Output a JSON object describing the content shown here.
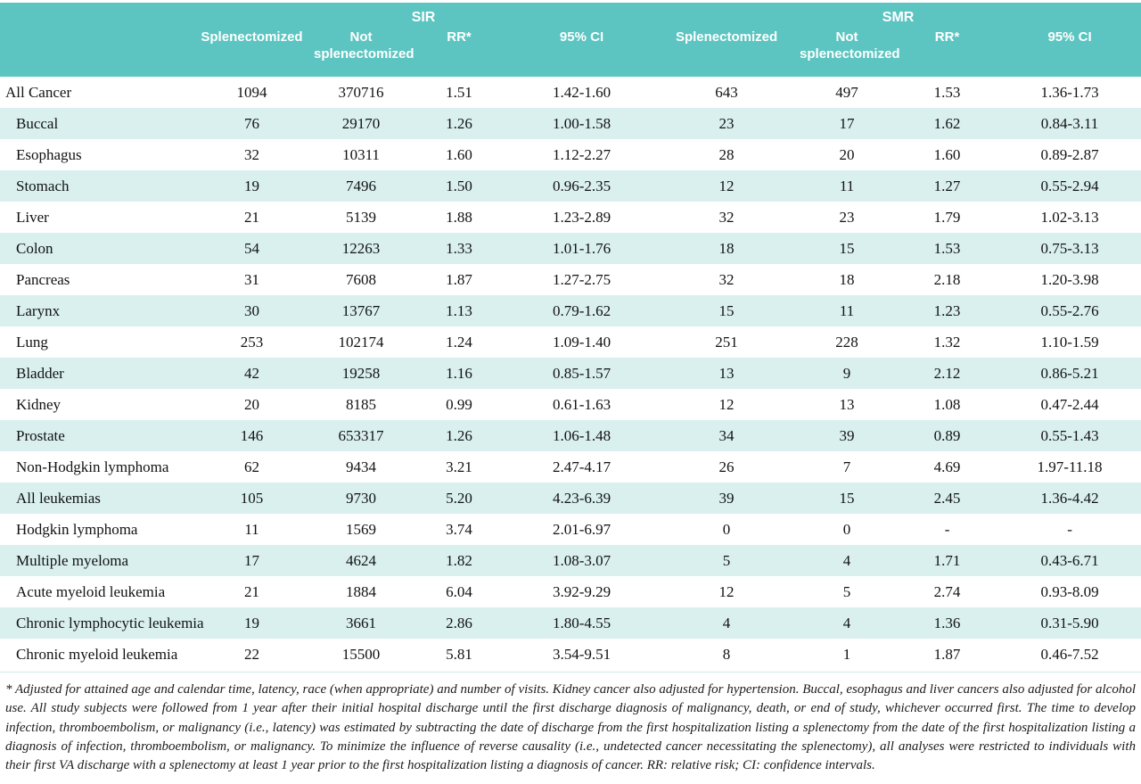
{
  "colors": {
    "header_bg": "#5cc5c1",
    "row_alt_bg": "#d9f0ef",
    "header_text": "#ffffff",
    "body_text": "#121212"
  },
  "table": {
    "group_headers": [
      {
        "label": "SIR"
      },
      {
        "label": "SMR"
      }
    ],
    "column_headers": [
      "Splenectomized",
      "Not splenectomized",
      "RR*",
      "95% CI",
      "Splenectomized",
      "Not splenectomized",
      "RR*",
      "95% CI"
    ],
    "rows": [
      {
        "label": "All Cancer",
        "indent": false,
        "values": [
          "1094",
          "370716",
          "1.51",
          "1.42-1.60",
          "643",
          "497",
          "1.53",
          "1.36-1.73"
        ]
      },
      {
        "label": "Buccal",
        "indent": true,
        "values": [
          "76",
          "29170",
          "1.26",
          "1.00-1.58",
          "23",
          "17",
          "1.62",
          "0.84-3.11"
        ]
      },
      {
        "label": "Esophagus",
        "indent": true,
        "values": [
          "32",
          "10311",
          "1.60",
          "1.12-2.27",
          "28",
          "20",
          "1.60",
          "0.89-2.87"
        ]
      },
      {
        "label": "Stomach",
        "indent": true,
        "values": [
          "19",
          "7496",
          "1.50",
          "0.96-2.35",
          "12",
          "11",
          "1.27",
          "0.55-2.94"
        ]
      },
      {
        "label": "Liver",
        "indent": true,
        "values": [
          "21",
          "5139",
          "1.88",
          "1.23-2.89",
          "32",
          "23",
          "1.79",
          "1.02-3.13"
        ]
      },
      {
        "label": "Colon",
        "indent": true,
        "values": [
          "54",
          "12263",
          "1.33",
          "1.01-1.76",
          "18",
          "15",
          "1.53",
          "0.75-3.13"
        ]
      },
      {
        "label": "Pancreas",
        "indent": true,
        "values": [
          "31",
          "7608",
          "1.87",
          "1.27-2.75",
          "32",
          "18",
          "2.18",
          "1.20-3.98"
        ]
      },
      {
        "label": "Larynx",
        "indent": true,
        "values": [
          "30",
          "13767",
          "1.13",
          "0.79-1.62",
          "15",
          "11",
          "1.23",
          "0.55-2.76"
        ]
      },
      {
        "label": "Lung",
        "indent": true,
        "values": [
          "253",
          "102174",
          "1.24",
          "1.09-1.40",
          "251",
          "228",
          "1.32",
          "1.10-1.59"
        ]
      },
      {
        "label": "Bladder",
        "indent": true,
        "values": [
          "42",
          "19258",
          "1.16",
          "0.85-1.57",
          "13",
          "9",
          "2.12",
          "0.86-5.21"
        ]
      },
      {
        "label": "Kidney",
        "indent": true,
        "values": [
          "20",
          "8185",
          "0.99",
          "0.61-1.63",
          "12",
          "13",
          "1.08",
          "0.47-2.44"
        ]
      },
      {
        "label": "Prostate",
        "indent": true,
        "values": [
          "146",
          "653317",
          "1.26",
          "1.06-1.48",
          "34",
          "39",
          "0.89",
          "0.55-1.43"
        ]
      },
      {
        "label": "Non-Hodgkin lymphoma",
        "indent": true,
        "values": [
          "62",
          "9434",
          "3.21",
          "2.47-4.17",
          "26",
          "7",
          "4.69",
          "1.97-11.18"
        ]
      },
      {
        "label": "All leukemias",
        "indent": true,
        "values": [
          "105",
          "9730",
          "5.20",
          "4.23-6.39",
          "39",
          "15",
          "2.45",
          "1.36-4.42"
        ]
      },
      {
        "label": "Hodgkin lymphoma",
        "indent": true,
        "values": [
          "11",
          "1569",
          "3.74",
          "2.01-6.97",
          "0",
          "0",
          "-",
          "-"
        ]
      },
      {
        "label": "Multiple myeloma",
        "indent": true,
        "values": [
          "17",
          "4624",
          "1.82",
          "1.08-3.07",
          "5",
          "4",
          "1.71",
          "0.43-6.71"
        ]
      },
      {
        "label": "Acute myeloid leukemia",
        "indent": true,
        "values": [
          "21",
          "1884",
          "6.04",
          "3.92-9.29",
          "12",
          "5",
          "2.74",
          "0.93-8.09"
        ]
      },
      {
        "label": "Chronic lymphocytic leukemia",
        "indent": true,
        "values": [
          "19",
          "3661",
          "2.86",
          "1.80-4.55",
          "4",
          "4",
          "1.36",
          "0.31-5.90"
        ]
      },
      {
        "label": "Chronic myeloid leukemia",
        "indent": true,
        "values": [
          "22",
          "15500",
          "5.81",
          "3.54-9.51",
          "8",
          "1",
          "1.87",
          "0.46-7.52"
        ]
      }
    ]
  },
  "footnote": "* Adjusted for attained age and calendar time, latency, race (when appropriate) and number of visits.  Kidney cancer also adjusted for hypertension. Buccal, esophagus and liver cancers also adjusted for alcohol use. All study subjects were followed from 1 year after their initial hospital discharge until the first discharge diagnosis of malignancy, death, or end of study, whichever occurred first. The time to develop infection, thromboembolism, or malignancy (i.e., latency) was estimated by subtracting the date of discharge from the first hospitalization listing a splenectomy from the date of the first hospitalization listing a diagnosis of infection, thromboembolism, or malignancy. To minimize the influence of reverse causality (i.e., undetected cancer necessitating the splenectomy), all analyses were restricted to individuals with their first VA discharge with a splenectomy at least 1 year prior to the first hospitalization listing a diagnosis of cancer.  RR: relative risk; CI: confidence intervals."
}
